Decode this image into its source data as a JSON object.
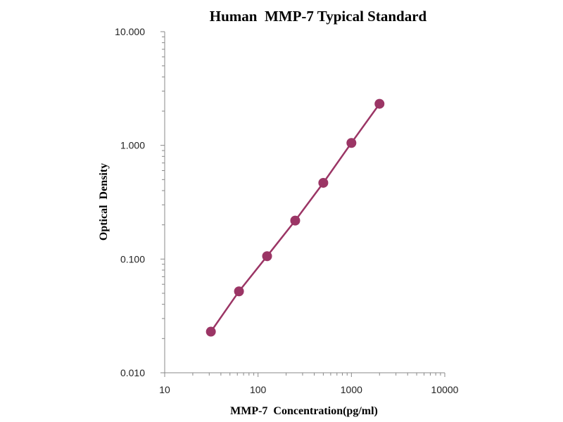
{
  "chart_data": {
    "type": "scatter",
    "title": "Human  MMP-7 Typical Standard",
    "xlabel": "MMP-7  Concentration(pg/ml)",
    "ylabel": "Optical  Density",
    "x_scale": "log",
    "y_scale": "log",
    "xlim": [
      10,
      10000
    ],
    "ylim": [
      0.01,
      10
    ],
    "x_ticks": [
      "10",
      "100",
      "1000",
      "10000"
    ],
    "y_ticks": [
      "10.000",
      "1.000",
      "0.100",
      "0.010"
    ],
    "grid": false,
    "series": [
      {
        "color": "#9b3565",
        "x": [
          31.25,
          62.5,
          125,
          250,
          500,
          1000,
          2000
        ],
        "y": [
          0.023,
          0.052,
          0.106,
          0.218,
          0.468,
          1.05,
          2.32
        ],
        "connect": true
      }
    ]
  }
}
